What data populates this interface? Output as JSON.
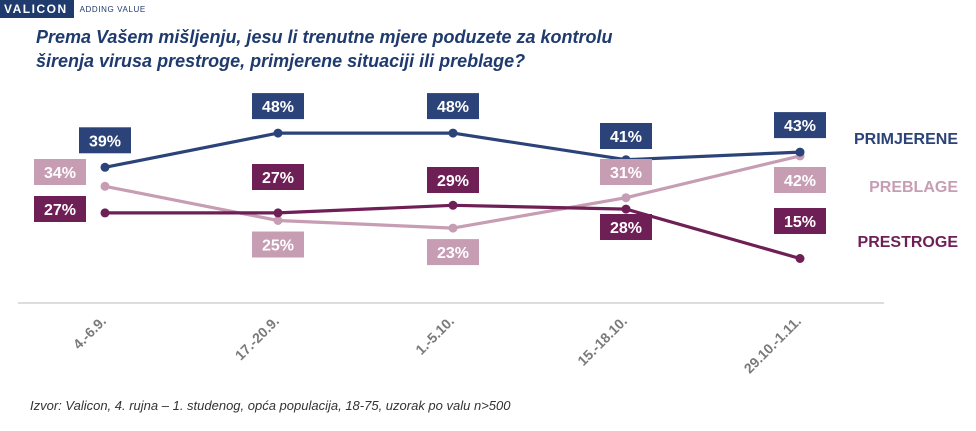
{
  "brand": {
    "logo": "VALICON",
    "tagline": "ADDING VALUE"
  },
  "title_line1": "Prema Vašem mišljenju,  jesu li trenutne mjere poduzete za kontrolu",
  "title_line2": "širenja virusa  prestroge, primjerene situaciji ili preblage?",
  "source": "Izvor: Valicon, 4. rujna – 1. studenog, opća populacija, 18-75, uzorak po valu n>500",
  "colors": {
    "primjerene": "#2b4378",
    "preblage": "#c79db4",
    "prestroge": "#6e1f55",
    "axis": "#bbbbbb",
    "tick": "#7a7a7a"
  },
  "chart_data": {
    "type": "line",
    "title": "Prema Vašem mišljenju,  jesu li trenutne mjere poduzete za kontrolu širenja virusa  prestroge, primjerene situaciji ili preblage?",
    "categories": [
      "4.-6.9.",
      "17.-20.9.",
      "1.-5.10.",
      "15.-18.10.",
      "29.10.-1.11."
    ],
    "series": [
      {
        "name": "PRIMJERENE",
        "values": [
          39,
          48,
          48,
          41,
          43
        ],
        "labels": [
          "39%",
          "48%",
          "48%",
          "41%",
          "43%"
        ]
      },
      {
        "name": "PREBLAGE",
        "values": [
          34,
          25,
          23,
          31,
          42
        ],
        "labels": [
          "34%",
          "25%",
          "23%",
          "31%",
          "42%"
        ]
      },
      {
        "name": "PRESTROGE",
        "values": [
          27,
          27,
          29,
          28,
          15
        ],
        "labels": [
          "27%",
          "27%",
          "29%",
          "28%",
          "15%"
        ]
      }
    ],
    "ylim": [
      0,
      60
    ],
    "grid": false,
    "legend": "right, end of lines"
  }
}
